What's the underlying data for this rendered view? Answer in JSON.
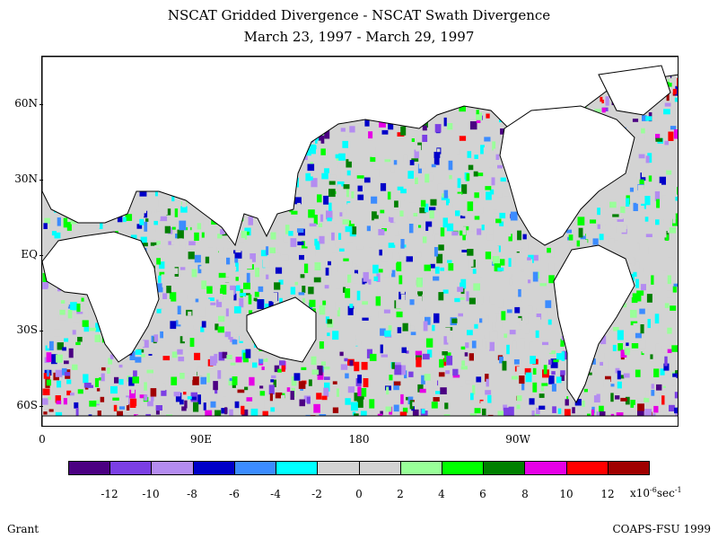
{
  "title_line1": "NSCAT Gridded Divergence - NSCAT Swath Divergence",
  "title_line2": "March 23, 1997 - March 29, 1997",
  "lat_labels": [
    "60N",
    "30N",
    "EQ",
    "30S",
    "60S"
  ],
  "lon_labels": [
    "0",
    "90E",
    "180",
    "90W"
  ],
  "colorbar": {
    "colors": [
      "#4b0082",
      "#7b3fe4",
      "#b48cf0",
      "#0000c8",
      "#3c8cff",
      "#00ffff",
      "#d3d3d3",
      "#d3d3d3",
      "#99ff99",
      "#00ff00",
      "#008000",
      "#e600e6",
      "#ff0000",
      "#a00000"
    ],
    "labels": [
      "-12",
      "-10",
      "-8",
      "-6",
      "-4",
      "-2",
      "0",
      "2",
      "4",
      "6",
      "8",
      "10",
      "12"
    ],
    "units_text": "x10",
    "units_exp": "-6",
    "units_tail": "sec",
    "units_tail_exp": "-1"
  },
  "credit_left": "Grant",
  "credit_right": "COAPS-FSU 1999"
}
